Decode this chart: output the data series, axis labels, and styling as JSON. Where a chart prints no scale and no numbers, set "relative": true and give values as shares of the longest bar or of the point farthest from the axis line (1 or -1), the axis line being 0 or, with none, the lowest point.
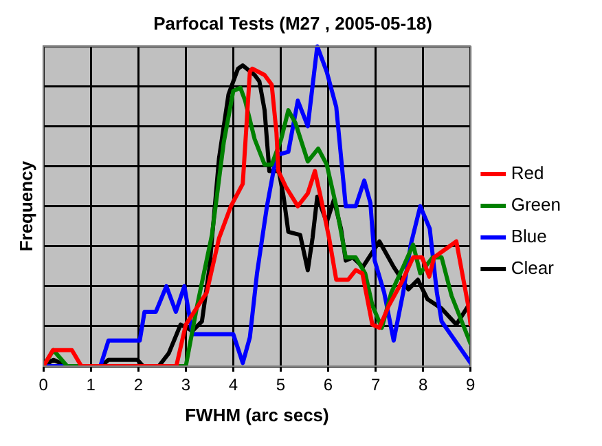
{
  "chart_data": {
    "type": "line",
    "title": "Parfocal Tests (M27 , 2005-05-18)",
    "xlabel": "FWHM (arc secs)",
    "ylabel": "Frequency",
    "relative": true,
    "xlim": [
      0,
      9
    ],
    "xticks": [
      0,
      1,
      2,
      3,
      4,
      5,
      6,
      7,
      8,
      9
    ],
    "grid": true,
    "legend": "right",
    "marker": "none",
    "line_style": "solid",
    "series": [
      {
        "name": "Red",
        "color": "#ff0000",
        "x": [
          0,
          0.2,
          0.6,
          0.8,
          2.8,
          3.0,
          3.44,
          3.7,
          3.95,
          4.2,
          4.35,
          4.4,
          4.66,
          4.81,
          4.91,
          4.95,
          5.11,
          5.36,
          5.57,
          5.72,
          5.84,
          6.02,
          6.17,
          6.42,
          6.58,
          6.72,
          6.93,
          7.08,
          7.28,
          7.54,
          7.79,
          7.98,
          8.13,
          8.23,
          8.7,
          8.95,
          9
        ],
        "values": [
          0,
          0.05,
          0.05,
          0,
          0,
          0.13,
          0.23,
          0.4,
          0.5,
          0.57,
          0.92,
          0.93,
          0.91,
          0.88,
          0.73,
          0.61,
          0.56,
          0.5,
          0.54,
          0.61,
          0.53,
          0.4,
          0.27,
          0.27,
          0.3,
          0.29,
          0.13,
          0.12,
          0.19,
          0.26,
          0.34,
          0.34,
          0.28,
          0.34,
          0.39,
          0.19,
          0.13
        ]
      },
      {
        "name": "Green",
        "color": "#008000",
        "x": [
          0,
          0.21,
          0.5,
          3.0,
          3.24,
          3.55,
          3.8,
          4.0,
          4.15,
          4.25,
          4.45,
          4.66,
          4.81,
          5.01,
          5.16,
          5.31,
          5.57,
          5.79,
          5.97,
          6.17,
          6.37,
          6.58,
          6.78,
          6.93,
          7.13,
          7.33,
          7.58,
          7.79,
          7.94,
          8.2,
          8.39,
          8.6,
          9
        ],
        "values": [
          0,
          0.05,
          0,
          0,
          0.19,
          0.41,
          0.7,
          0.86,
          0.87,
          0.83,
          0.71,
          0.63,
          0.63,
          0.71,
          0.8,
          0.76,
          0.64,
          0.68,
          0.63,
          0.5,
          0.34,
          0.34,
          0.29,
          0.19,
          0.12,
          0.23,
          0.31,
          0.38,
          0.29,
          0.34,
          0.34,
          0.22,
          0.07
        ]
      },
      {
        "name": "Blue",
        "color": "#0000ff",
        "x": [
          0,
          1.2,
          1.37,
          2.03,
          2.13,
          2.37,
          2.59,
          2.79,
          2.97,
          3.14,
          4.0,
          4.2,
          4.35,
          4.5,
          4.71,
          4.91,
          5.16,
          5.36,
          5.57,
          5.77,
          5.97,
          6.17,
          6.37,
          6.58,
          6.76,
          6.89,
          6.98,
          7.18,
          7.38,
          7.58,
          7.74,
          7.94,
          8.14,
          8.29,
          8.39,
          9
        ],
        "values": [
          0,
          0,
          0.08,
          0.08,
          0.17,
          0.17,
          0.25,
          0.17,
          0.25,
          0.1,
          0.1,
          0.01,
          0.09,
          0.29,
          0.5,
          0.66,
          0.67,
          0.83,
          0.75,
          1,
          0.92,
          0.81,
          0.5,
          0.5,
          0.58,
          0.51,
          0.33,
          0.23,
          0.08,
          0.23,
          0.38,
          0.5,
          0.43,
          0.23,
          0.14,
          0.01
        ]
      },
      {
        "name": "Clear",
        "color": "#000000",
        "x": [
          0,
          0.21,
          0.5,
          1.22,
          1.37,
          1.98,
          2.1,
          2.43,
          2.64,
          2.89,
          3.14,
          3.34,
          3.5,
          3.7,
          3.9,
          4.1,
          4.2,
          4.45,
          4.55,
          4.66,
          4.76,
          4.96,
          5.06,
          5.16,
          5.41,
          5.57,
          5.67,
          5.77,
          5.97,
          6.12,
          6.27,
          6.37,
          6.52,
          6.73,
          7.08,
          7.38,
          7.69,
          7.89,
          8.09,
          8.39,
          8.7,
          9
        ],
        "values": [
          0,
          0.02,
          0,
          0,
          0.02,
          0.02,
          0,
          0,
          0.04,
          0.13,
          0.11,
          0.14,
          0.31,
          0.65,
          0.85,
          0.93,
          0.94,
          0.91,
          0.89,
          0.8,
          0.61,
          0.61,
          0.53,
          0.42,
          0.41,
          0.3,
          0.4,
          0.53,
          0.45,
          0.52,
          0.43,
          0.33,
          0.34,
          0.31,
          0.39,
          0.31,
          0.24,
          0.27,
          0.21,
          0.18,
          0.13,
          0.2
        ]
      }
    ]
  }
}
